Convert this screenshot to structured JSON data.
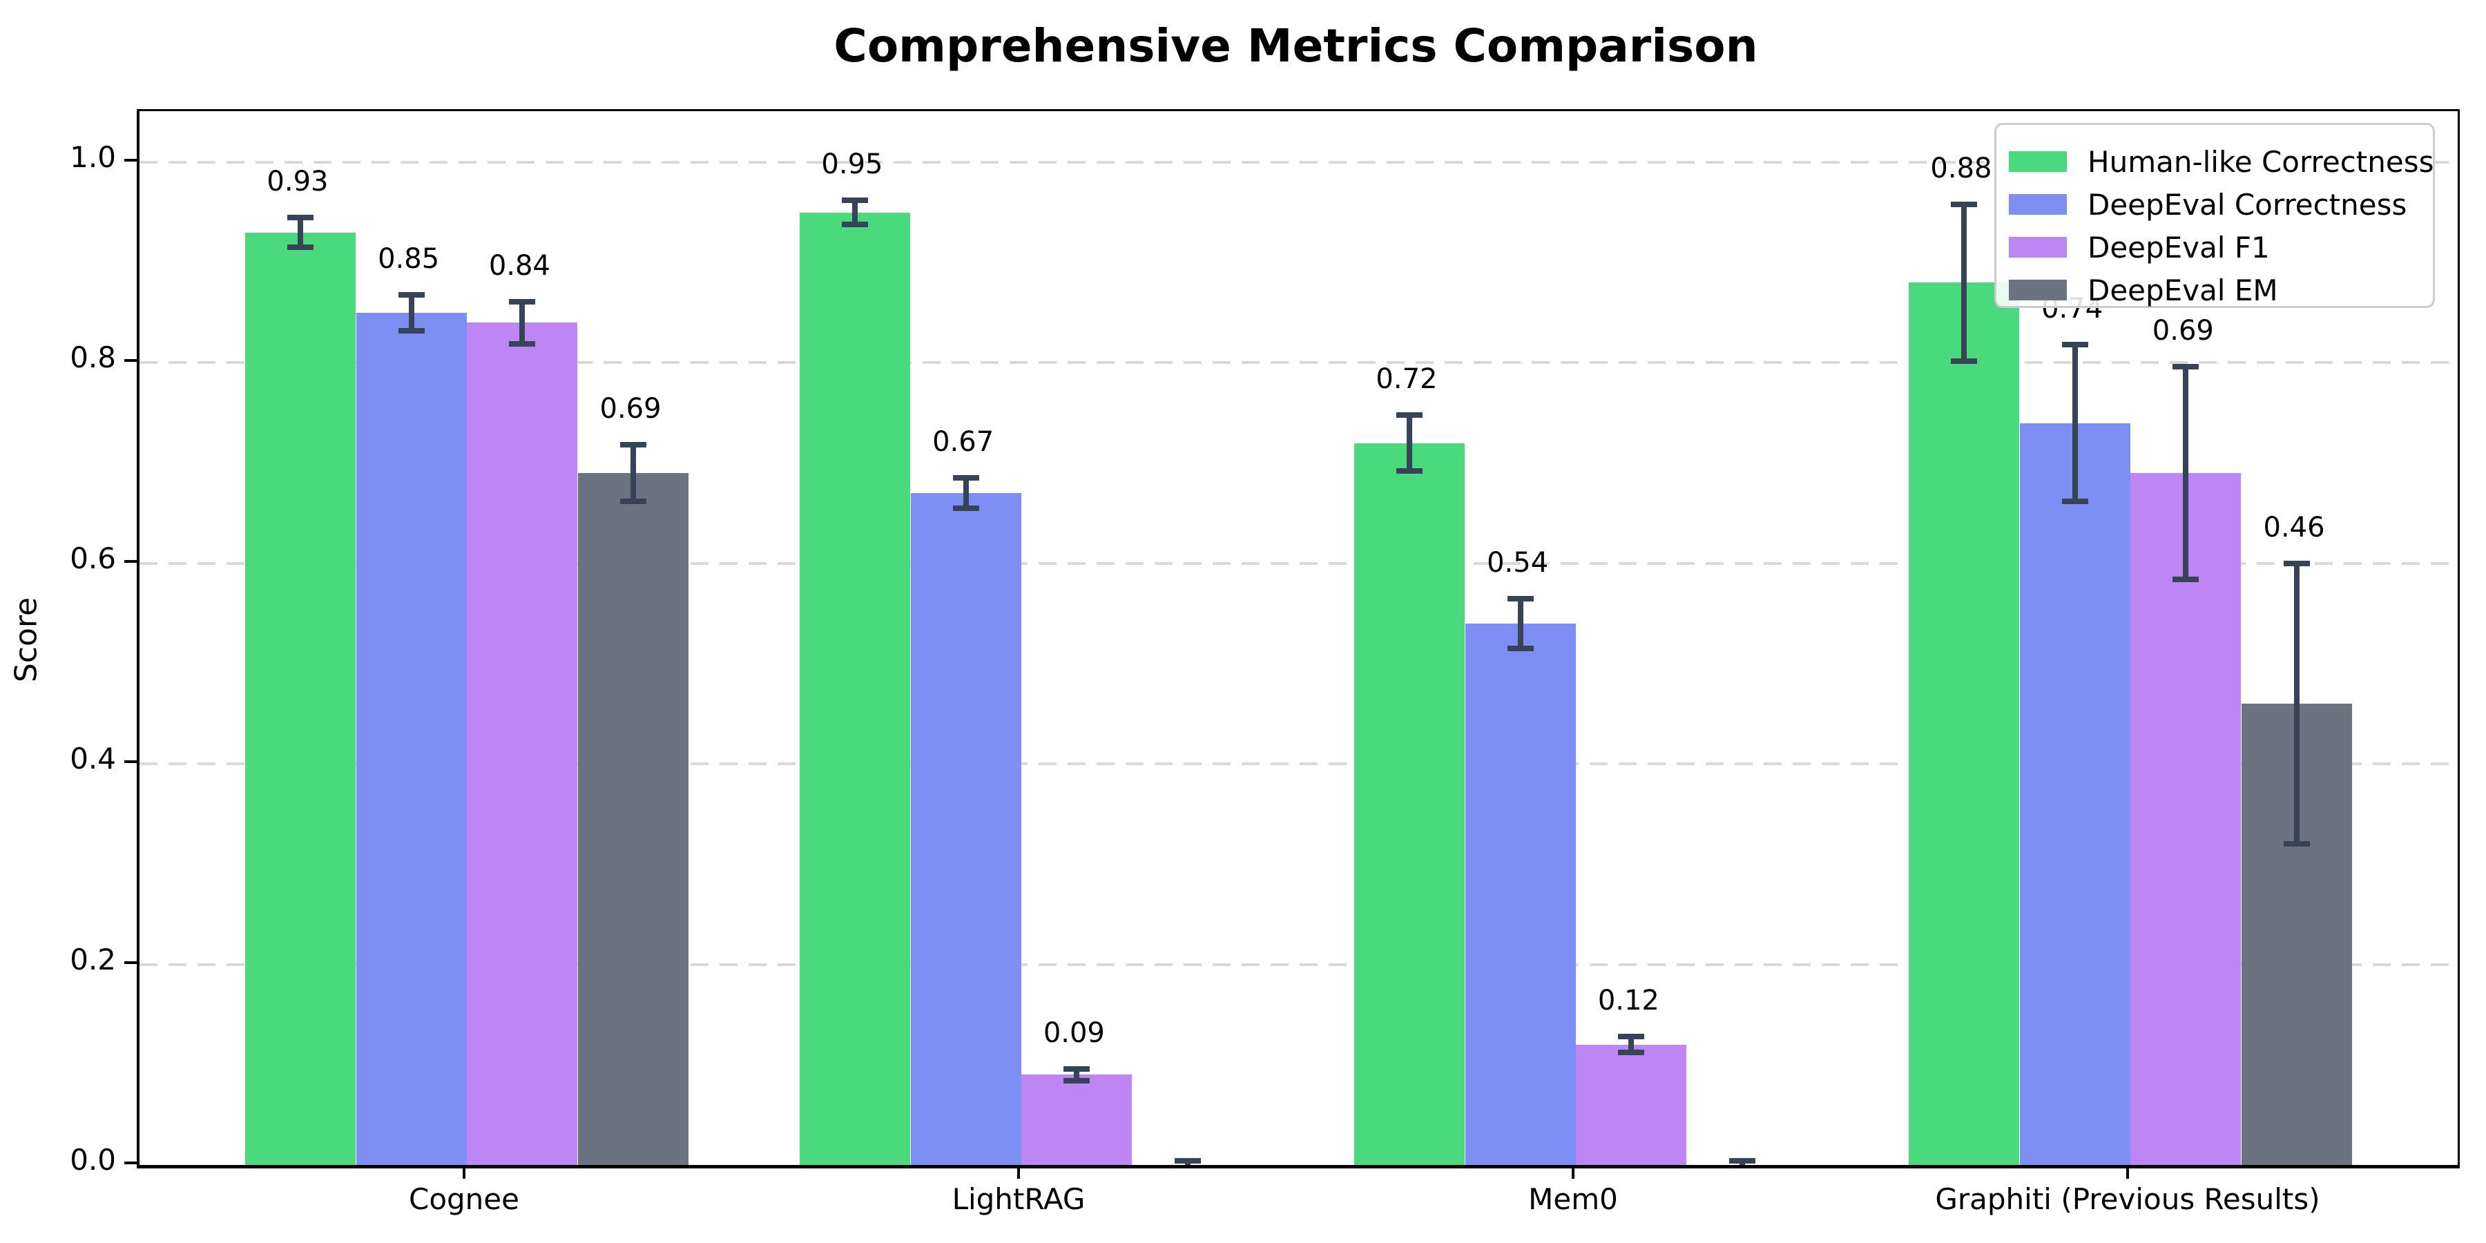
{
  "chart_data": {
    "type": "bar",
    "title": "Comprehensive Metrics Comparison",
    "xlabel": "",
    "ylabel": "Score",
    "categories": [
      "Cognee",
      "LightRAG",
      "Mem0",
      "Graphiti (Previous Results)"
    ],
    "series": [
      {
        "name": "Human-like Correctness",
        "color": "#4ad97d",
        "values": [
          0.93,
          0.95,
          0.72,
          0.88
        ],
        "errors": [
          0.015,
          0.012,
          0.028,
          0.078
        ],
        "labels": [
          "0.93",
          "0.95",
          "0.72",
          "0.88"
        ]
      },
      {
        "name": "DeepEval Correctness",
        "color": "#7d8ef4",
        "values": [
          0.85,
          0.67,
          0.54,
          0.74
        ],
        "errors": [
          0.018,
          0.015,
          0.025,
          0.078
        ],
        "labels": [
          "0.85",
          "0.67",
          "0.54",
          "0.74"
        ]
      },
      {
        "name": "DeepEval F1",
        "color": "#be86f5",
        "values": [
          0.84,
          0.09,
          0.12,
          0.69
        ],
        "errors": [
          0.021,
          0.006,
          0.008,
          0.106
        ],
        "labels": [
          "0.84",
          "0.09",
          "0.12",
          "0.69"
        ]
      },
      {
        "name": "DeepEval EM",
        "color": "#6b7280",
        "values": [
          0.69,
          0.0,
          0.0,
          0.46
        ],
        "errors": [
          0.028,
          0.004,
          0.004,
          0.14
        ],
        "labels": [
          "0.69",
          "",
          "",
          "0.46"
        ]
      }
    ],
    "ytick_values": [
      0.0,
      0.2,
      0.4,
      0.6,
      0.8,
      1.0
    ],
    "ytick_labels": [
      "0.0",
      "0.2",
      "0.4",
      "0.6",
      "0.8",
      "1.0"
    ],
    "ylim": [
      0,
      1.05
    ],
    "grid": "horizontal-dashed",
    "legend_position": "upper right"
  },
  "colors": {
    "background": "#ffffff",
    "axis": "#000000",
    "gridline": "#d9d9d9",
    "error_bar": "#374357",
    "legend_border": "#cccccc"
  }
}
